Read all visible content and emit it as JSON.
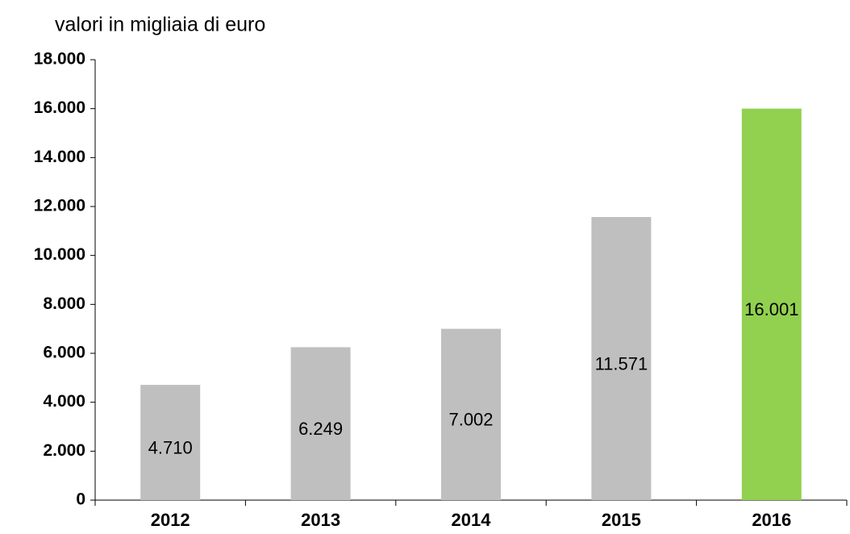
{
  "chart_data": {
    "type": "bar",
    "title": "valori in migliaia di euro",
    "categories": [
      "2012",
      "2013",
      "2014",
      "2015",
      "2016"
    ],
    "values": [
      4710,
      6249,
      7002,
      11571,
      16001
    ],
    "value_labels": [
      "4.710",
      "6.249",
      "7.002",
      "11.571",
      "16.001"
    ],
    "colors": [
      "#bfbfbf",
      "#bfbfbf",
      "#bfbfbf",
      "#bfbfbf",
      "#92d050"
    ],
    "ylim": [
      0,
      18000
    ],
    "yticks": [
      0,
      {
        "value": 2000,
        "label": "2.000"
      },
      {
        "value": 4000,
        "label": "4.000"
      },
      {
        "value": 6000,
        "label": "6.000"
      },
      {
        "value": 8000,
        "label": "8.000"
      },
      {
        "value": 10000,
        "label": "10.000"
      },
      {
        "value": 12000,
        "label": "12.000"
      },
      {
        "value": 14000,
        "label": "14.000"
      },
      {
        "value": 16000,
        "label": "16.000"
      },
      {
        "value": 18000,
        "label": "18.000"
      }
    ],
    "grid": false
  }
}
